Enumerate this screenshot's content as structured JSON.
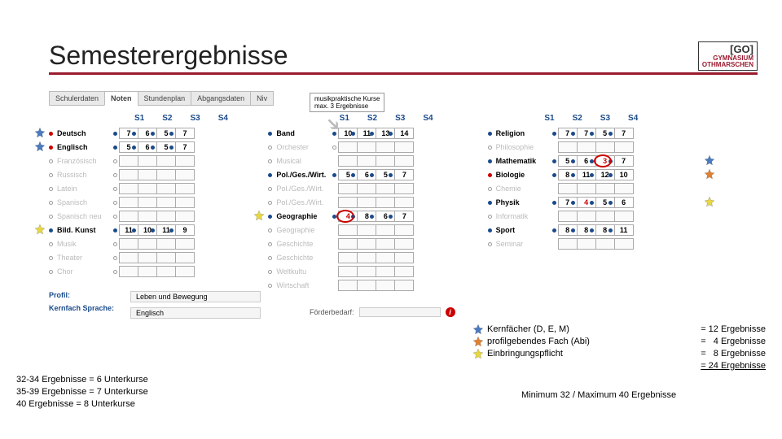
{
  "title": "Semesterergebnisse",
  "logo": {
    "top": "[GO]",
    "line1": "HAMBURG",
    "line2": "GYMNASIUM",
    "line3": "OTHMARSCHEN"
  },
  "tabs": [
    "Schulerdaten",
    "Noten",
    "Stundenplan",
    "Abgangsdaten",
    "Niv"
  ],
  "semesters": [
    "S1",
    "S2",
    "S3",
    "S4"
  ],
  "note": {
    "l1": "musikpraktische Kurse",
    "l2": "max. 3 Ergebnisse"
  },
  "col1": [
    {
      "name": "Deutsch",
      "style": "bold",
      "dot": "red",
      "vals": [
        "7",
        "6",
        "5",
        "7"
      ],
      "dots": [
        "f",
        "f",
        "f",
        "f"
      ],
      "star": "blue"
    },
    {
      "name": "Englisch",
      "style": "bold",
      "dot": "red",
      "vals": [
        "5",
        "6",
        "5",
        "7"
      ],
      "dots": [
        "f",
        "f",
        "f",
        "f"
      ],
      "star": "blue"
    },
    {
      "name": "Französisch",
      "style": "gray",
      "dot": "o",
      "vals": [
        "",
        "",
        "",
        ""
      ],
      "dots": [
        "o",
        "",
        "",
        ""
      ]
    },
    {
      "name": "Russisch",
      "style": "gray",
      "dot": "o",
      "vals": [
        "",
        "",
        "",
        ""
      ],
      "dots": [
        "o",
        "",
        "",
        ""
      ]
    },
    {
      "name": "Latein",
      "style": "gray",
      "dot": "o",
      "vals": [
        "",
        "",
        "",
        ""
      ],
      "dots": [
        "o",
        "",
        "",
        ""
      ]
    },
    {
      "name": "Spanisch",
      "style": "gray",
      "dot": "o",
      "vals": [
        "",
        "",
        "",
        ""
      ],
      "dots": [
        "o",
        "",
        "",
        ""
      ]
    },
    {
      "name": "Spanisch neu",
      "style": "gray",
      "dot": "o",
      "vals": [
        "",
        "",
        "",
        ""
      ],
      "dots": [
        "o",
        "",
        "",
        ""
      ]
    },
    {
      "name": "Bild. Kunst",
      "style": "bold",
      "dot": "f",
      "vals": [
        "11",
        "10",
        "11",
        "9"
      ],
      "dots": [
        "f",
        "f",
        "f",
        "f"
      ],
      "star": "yellow"
    },
    {
      "name": "Musik",
      "style": "gray",
      "dot": "o",
      "vals": [
        "",
        "",
        "",
        ""
      ],
      "dots": [
        "o",
        "",
        "",
        ""
      ]
    },
    {
      "name": "Theater",
      "style": "gray",
      "dot": "o",
      "vals": [
        "",
        "",
        "",
        ""
      ],
      "dots": [
        "o",
        "",
        "",
        ""
      ]
    },
    {
      "name": "Chor",
      "style": "gray",
      "dot": "o",
      "vals": [
        "",
        "",
        "",
        ""
      ],
      "dots": [
        "o",
        "",
        "",
        ""
      ]
    }
  ],
  "col2": [
    {
      "name": "Band",
      "style": "bold",
      "dot": "f",
      "vals": [
        "10",
        "11",
        "13",
        "14"
      ],
      "dots": [
        "f",
        "f",
        "f",
        "f"
      ]
    },
    {
      "name": "Orchester",
      "style": "gray",
      "dot": "o",
      "vals": [
        "",
        "",
        "",
        ""
      ],
      "dots": [
        "o",
        "",
        "",
        ""
      ]
    },
    {
      "name": "Musical",
      "style": "gray",
      "dot": "o",
      "vals": [
        "",
        "",
        "",
        ""
      ],
      "dots": [
        "",
        "",
        "",
        ""
      ]
    },
    {
      "name": "Pol./Ges./Wirt.",
      "style": "bold",
      "dot": "f",
      "vals": [
        "5",
        "6",
        "5",
        "7"
      ],
      "dots": [
        "f",
        "f",
        "f",
        "f"
      ]
    },
    {
      "name": "Pol./Ges./Wirt.",
      "style": "gray",
      "dot": "o",
      "vals": [
        "",
        "",
        "",
        ""
      ],
      "dots": [
        "",
        "",
        "",
        ""
      ]
    },
    {
      "name": "Pol./Ges./Wirt.",
      "style": "gray",
      "dot": "o",
      "vals": [
        "",
        "",
        "",
        ""
      ],
      "dots": [
        "",
        "",
        "",
        ""
      ]
    },
    {
      "name": "Geographie",
      "style": "bold",
      "dot": "f",
      "vals": [
        "4",
        "8",
        "6",
        "7"
      ],
      "dots": [
        "f",
        "f",
        "f",
        "f"
      ],
      "star": "yellow",
      "circle": 0
    },
    {
      "name": "Geographie",
      "style": "gray",
      "dot": "o",
      "vals": [
        "",
        "",
        "",
        ""
      ],
      "dots": [
        "",
        "",
        "",
        ""
      ]
    },
    {
      "name": "Geschichte",
      "style": "gray",
      "dot": "o",
      "vals": [
        "",
        "",
        "",
        ""
      ],
      "dots": [
        "",
        "",
        "",
        ""
      ]
    },
    {
      "name": "Geschichte",
      "style": "gray",
      "dot": "o",
      "vals": [
        "",
        "",
        "",
        ""
      ],
      "dots": [
        "",
        "",
        "",
        ""
      ]
    },
    {
      "name": "Weltkultu",
      "style": "gray",
      "dot": "o",
      "vals": [
        "",
        "",
        "",
        ""
      ],
      "dots": [
        "",
        "",
        "",
        ""
      ]
    },
    {
      "name": "Wirtschaft",
      "style": "gray",
      "dot": "o",
      "vals": [
        "",
        "",
        "",
        ""
      ],
      "dots": [
        "",
        "",
        "",
        ""
      ]
    }
  ],
  "col3": [
    {
      "name": "Religion",
      "style": "bold",
      "dot": "f",
      "vals": [
        "7",
        "7",
        "5",
        "7"
      ],
      "dots": [
        "f",
        "f",
        "f",
        "f"
      ]
    },
    {
      "name": "Philosophie",
      "style": "gray",
      "dot": "o",
      "vals": [
        "",
        "",
        "",
        ""
      ],
      "dots": [
        "",
        "",
        "",
        ""
      ]
    },
    {
      "name": "Mathematik",
      "style": "bold",
      "dot": "f",
      "vals": [
        "5",
        "6",
        "3",
        "7"
      ],
      "dots": [
        "f",
        "f",
        "f",
        "f"
      ],
      "star": "blue",
      "starPos": "right",
      "circle": 2
    },
    {
      "name": "Biologie",
      "style": "bold",
      "dot": "red",
      "vals": [
        "8",
        "11",
        "12",
        "10"
      ],
      "dots": [
        "f",
        "f",
        "f",
        "f"
      ],
      "star": "orange",
      "starPos": "right"
    },
    {
      "name": "Chemie",
      "style": "gray",
      "dot": "o",
      "vals": [
        "",
        "",
        "",
        ""
      ],
      "dots": [
        "",
        "",
        "",
        ""
      ]
    },
    {
      "name": "Physik",
      "style": "bold",
      "dot": "f",
      "vals": [
        "7",
        "4",
        "5",
        "6"
      ],
      "dots": [
        "f",
        "f",
        "f",
        "f"
      ],
      "star": "yellow",
      "starPos": "right"
    },
    {
      "name": "Informatik",
      "style": "gray",
      "dot": "o",
      "vals": [
        "",
        "",
        "",
        ""
      ],
      "dots": [
        "",
        "",
        "",
        ""
      ]
    },
    {
      "name": "Sport",
      "style": "bold",
      "dot": "f",
      "vals": [
        "8",
        "8",
        "8",
        "11"
      ],
      "dots": [
        "f",
        "f",
        "f",
        "f"
      ]
    },
    {
      "name": "Seminar",
      "style": "gray",
      "dot": "o",
      "vals": [
        "",
        "",
        "",
        ""
      ],
      "dots": [
        "",
        "",
        "",
        ""
      ]
    }
  ],
  "profile": {
    "label1": "Profil:",
    "val1": "Leben und Bewegung",
    "label2": "Kernfach Sprache:",
    "val2": "Englisch"
  },
  "foerder": "Förderbedarf:",
  "legend": [
    {
      "star": "blue",
      "label": "Kernfächer (D, E, M)",
      "val": "= 12 Ergebnisse"
    },
    {
      "star": "orange",
      "label": "profilgebendes Fach (Abi)",
      "val": "=   4 Ergebnisse"
    },
    {
      "star": "yellow",
      "label": "Einbringungspflicht",
      "val": "=   8 Ergebnisse"
    }
  ],
  "legendTotal": "= 24 Ergebnisse",
  "leftSummary": [
    "32-34 Ergebnisse = 6 Unterkurse",
    "35-39 Ergebnisse = 7 Unterkurse",
    "40 Ergebnisse = 8 Unterkurse"
  ],
  "minmax": "Minimum 32 / Maximum 40 Ergebnisse",
  "starColors": {
    "blue": "#4a7bc0",
    "orange": "#e08030",
    "yellow": "#e8d840"
  }
}
